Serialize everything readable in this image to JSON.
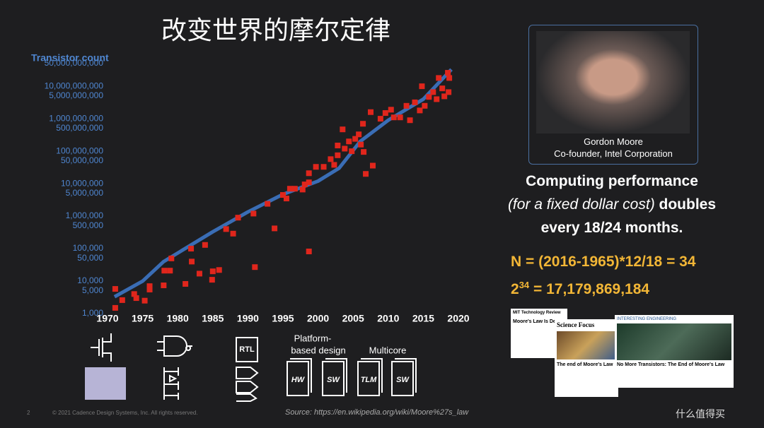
{
  "slide": {
    "title": "改变世界的摩尔定律",
    "person_name": "Gordon Moore",
    "person_role": "Co-founder, Intel Corporation",
    "claim_line1": "Computing performance",
    "claim_line2_italic": "(for a fixed dollar cost)",
    "claim_line2_rest": "doubles",
    "claim_line3": "every 18/24 months.",
    "formula": "N = (2016-1965)*12/18 = 34",
    "power_base": "2",
    "power_exponent": "34",
    "power_result": "= 17,179,869,184",
    "icon_labels": {
      "rtl": "RTL",
      "platform_line1": "Platform-",
      "platform_line2": "based design",
      "multicore": "Multicore",
      "hw": "HW",
      "sw1": "SW",
      "tlm": "TLM",
      "sw2": "SW"
    },
    "articles": {
      "mit": "MIT Technology Review",
      "mit_headline": "Moore's Law Is De",
      "focus": "Science Focus",
      "focus_headline": "The end of Moore's Law",
      "ie": "INTERESTING ENGINEERING",
      "ie_headline": "No More Transistors: The End of Moore's Law"
    },
    "page_number": "2",
    "copyright": "© 2021 Cadence Design Systems, Inc. All rights reserved.",
    "source": "Source: https://en.wikipedia.org/wiki/Moore%27s_law",
    "watermark": "什么值得买"
  },
  "chart_data": {
    "type": "scatter",
    "ylabel": "Transistor count",
    "log_y": true,
    "xlim": [
      1970,
      2020
    ],
    "xticks": [
      1970,
      1975,
      1980,
      1985,
      1990,
      1995,
      2000,
      2005,
      2010,
      2015,
      2020
    ],
    "ylim": [
      1000,
      50000000000
    ],
    "yticks": [
      {
        "value": 1000,
        "label": "1,000"
      },
      {
        "value": 5000,
        "label": "5,000"
      },
      {
        "value": 10000,
        "label": "10,000"
      },
      {
        "value": 50000,
        "label": "50,000"
      },
      {
        "value": 100000,
        "label": "100,000"
      },
      {
        "value": 500000,
        "label": "500,000"
      },
      {
        "value": 1000000,
        "label": "1,000,000"
      },
      {
        "value": 5000000,
        "label": "5,000,000"
      },
      {
        "value": 10000000,
        "label": "10,000,000"
      },
      {
        "value": 50000000,
        "label": "50,000,000"
      },
      {
        "value": 100000000,
        "label": "100,000,000"
      },
      {
        "value": 500000000,
        "label": "500,000,000"
      },
      {
        "value": 1000000000,
        "label": "1,000,000,000"
      },
      {
        "value": 5000000000,
        "label": "5,000,000,000"
      },
      {
        "value": 10000000000,
        "label": "10,000,000,000"
      },
      {
        "value": 50000000000,
        "label": "50,000,000,000"
      }
    ],
    "series": [
      {
        "type": "line",
        "color": "#3a6db5",
        "x": [
          1971,
          1975,
          1978,
          1985,
          1990,
          1995,
          2000,
          2003,
          2006,
          2010,
          2015,
          2019
        ],
        "values": [
          3300,
          10000,
          40000,
          330000,
          1350000,
          4700000,
          12000000,
          30000000,
          200000000,
          900000000,
          4000000000,
          33000000000
        ]
      },
      {
        "type": "scatter",
        "color": "#e0261c",
        "x": [
          1971.1,
          1971.1,
          1972.1,
          1973.8,
          1974.1,
          1975.3,
          1976,
          1976,
          1978,
          1978.1,
          1978.9,
          1979.1,
          1981.1,
          1981.9,
          1982,
          1983.1,
          1983.9,
          1984.9,
          1985,
          1985.9,
          1986.9,
          1987.9,
          1988.6,
          1990.8,
          1991,
          1992.8,
          1993.8,
          1995,
          1995.5,
          1996,
          1996.7,
          1997.8,
          1998.1,
          1998.7,
          1998.7,
          1998.7,
          1999.7,
          2000.8,
          2001.8,
          2002.3,
          2002.8,
          2002.8,
          2003.5,
          2003.8,
          2004.4,
          2004.8,
          2005.3,
          2005.8,
          2006.1,
          2006.4,
          2006.5,
          2006.8,
          2007.5,
          2007.8,
          2008.9,
          2009.6,
          2010.4,
          2010.8,
          2011.7,
          2012.6,
          2013.1,
          2013.8,
          2014.5,
          2014.8,
          2015.2,
          2015.8,
          2016.4,
          2016.9,
          2017.2,
          2017.7,
          2018,
          2018.5,
          2018.6,
          2018.7
        ],
        "values": [
          1500,
          5750,
          2600,
          4000,
          3000,
          2500,
          7000,
          5500,
          7400,
          21000,
          21000,
          50000,
          8200,
          100000,
          40000,
          17000,
          130000,
          11000,
          20000,
          22000,
          400000,
          290000,
          900000,
          1200000,
          27000,
          2400000,
          420000,
          4500000,
          3500000,
          7000000,
          7000000,
          6600000,
          9500000,
          82000,
          11000000,
          21000000,
          33000000,
          33000000,
          57000000,
          38000000,
          150000000,
          75000000,
          470000000,
          120000000,
          200000000,
          100000000,
          240000000,
          330000000,
          160000000,
          700000000,
          95000000,
          20000000,
          1600000000,
          36000000,
          1000000000,
          1500000000,
          1900000000,
          1100000000,
          1100000000,
          2500000000,
          900000000,
          3200000000,
          1800000000,
          10000000000,
          2500000000,
          4700000000,
          6600000000,
          4000000000,
          18000000000,
          8600000000,
          4900000000,
          26000000000,
          6600000000,
          18000000000
        ]
      }
    ]
  }
}
